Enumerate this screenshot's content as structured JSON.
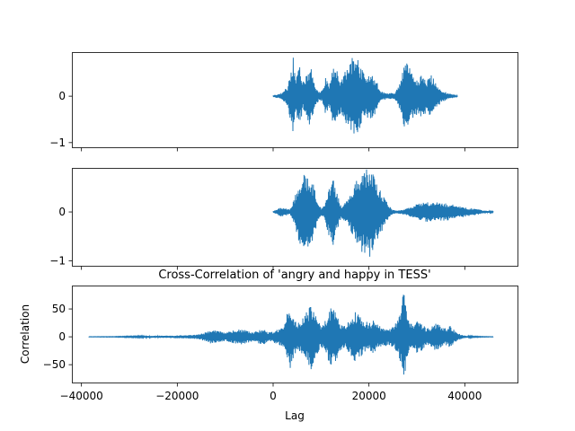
{
  "chart_data": [
    {
      "type": "line",
      "title": "",
      "xlabel": "",
      "ylabel": "",
      "xlim": [
        -42000,
        51000
      ],
      "ylim": [
        -1.1,
        0.95
      ],
      "xticks": [
        -40000,
        -20000,
        0,
        20000,
        40000
      ],
      "yticks": [
        -1,
        0
      ],
      "yticklabels": [
        "−1",
        "0"
      ],
      "show_xticklabels": false,
      "color": "#1f77b4",
      "series": [
        {
          "x_start": 0,
          "x_end": 38500,
          "envelope": [
            [
              0,
              0.02
            ],
            [
              1000,
              0.04
            ],
            [
              2000,
              0.08
            ],
            [
              2500,
              0.15
            ],
            [
              3000,
              0.2
            ],
            [
              3500,
              0.5
            ],
            [
              4200,
              0.85
            ],
            [
              4800,
              0.4
            ],
            [
              5500,
              0.65
            ],
            [
              6200,
              0.3
            ],
            [
              7000,
              0.45
            ],
            [
              7800,
              0.7
            ],
            [
              8500,
              0.3
            ],
            [
              9500,
              0.1
            ],
            [
              10300,
              0.12
            ],
            [
              11000,
              0.45
            ],
            [
              11800,
              0.25
            ],
            [
              12500,
              0.65
            ],
            [
              13300,
              0.55
            ],
            [
              14200,
              0.35
            ],
            [
              15000,
              0.55
            ],
            [
              16000,
              0.7
            ],
            [
              17000,
              0.95
            ],
            [
              17600,
              0.9
            ],
            [
              18500,
              0.6
            ],
            [
              19500,
              0.45
            ],
            [
              20500,
              0.5
            ],
            [
              21500,
              0.35
            ],
            [
              22500,
              0.1
            ],
            [
              24000,
              0.06
            ],
            [
              25500,
              0.08
            ],
            [
              26500,
              0.3
            ],
            [
              27500,
              0.75
            ],
            [
              28000,
              0.7
            ],
            [
              29000,
              0.5
            ],
            [
              30000,
              0.4
            ],
            [
              31000,
              0.45
            ],
            [
              32000,
              0.35
            ],
            [
              33000,
              0.45
            ],
            [
              34000,
              0.3
            ],
            [
              35000,
              0.15
            ],
            [
              36500,
              0.06
            ],
            [
              38000,
              0.03
            ],
            [
              38500,
              0.02
            ]
          ]
        }
      ]
    },
    {
      "type": "line",
      "title": "",
      "xlabel": "",
      "ylabel": "",
      "xlim": [
        -42000,
        51000
      ],
      "ylim": [
        -1.1,
        0.9
      ],
      "xticks": [
        -40000,
        -20000,
        0,
        20000,
        40000
      ],
      "yticks": [
        -1,
        0
      ],
      "yticklabels": [
        "−1",
        "0"
      ],
      "show_xticklabels": false,
      "color": "#1f77b4",
      "series": [
        {
          "x_start": 0,
          "x_end": 46000,
          "envelope": [
            [
              0,
              0.02
            ],
            [
              800,
              0.05
            ],
            [
              1500,
              0.1
            ],
            [
              2500,
              0.08
            ],
            [
              3500,
              0.05
            ],
            [
              4500,
              0.3
            ],
            [
              5500,
              0.65
            ],
            [
              6500,
              0.78
            ],
            [
              7500,
              0.7
            ],
            [
              8500,
              0.55
            ],
            [
              9200,
              0.25
            ],
            [
              10000,
              0.08
            ],
            [
              10800,
              0.15
            ],
            [
              11500,
              0.45
            ],
            [
              12400,
              0.72
            ],
            [
              13300,
              0.4
            ],
            [
              14200,
              0.12
            ],
            [
              15000,
              0.2
            ],
            [
              16000,
              0.35
            ],
            [
              17000,
              0.55
            ],
            [
              18000,
              0.78
            ],
            [
              19000,
              0.85
            ],
            [
              20000,
              0.95
            ],
            [
              21000,
              0.75
            ],
            [
              22000,
              0.5
            ],
            [
              23000,
              0.35
            ],
            [
              24000,
              0.15
            ],
            [
              25000,
              0.04
            ],
            [
              26000,
              0.03
            ],
            [
              27000,
              0.05
            ],
            [
              28000,
              0.08
            ],
            [
              29000,
              0.12
            ],
            [
              30000,
              0.16
            ],
            [
              31000,
              0.18
            ],
            [
              32000,
              0.2
            ],
            [
              33000,
              0.2
            ],
            [
              34000,
              0.2
            ],
            [
              35000,
              0.19
            ],
            [
              36000,
              0.18
            ],
            [
              37000,
              0.16
            ],
            [
              38000,
              0.14
            ],
            [
              39000,
              0.12
            ],
            [
              40000,
              0.1
            ],
            [
              41000,
              0.08
            ],
            [
              42000,
              0.07
            ],
            [
              43000,
              0.05
            ],
            [
              44000,
              0.03
            ],
            [
              45000,
              0.02
            ],
            [
              46000,
              0.01
            ]
          ]
        }
      ]
    },
    {
      "type": "line",
      "title": "Cross-Correlation of 'angry and happy in TESS'",
      "xlabel": "Lag",
      "ylabel": "Correlation",
      "xlim": [
        -42000,
        51000
      ],
      "ylim": [
        -82,
        92
      ],
      "xticks": [
        -40000,
        -20000,
        0,
        20000,
        40000
      ],
      "xticklabels": [
        "−40000",
        "−20000",
        "0",
        "20000",
        "40000"
      ],
      "yticks": [
        -50,
        0,
        50
      ],
      "yticklabels": [
        "−50",
        "0",
        "50"
      ],
      "show_xticklabels": true,
      "color": "#1f77b4",
      "series": [
        {
          "x_start": -38500,
          "x_end": 46000,
          "envelope": [
            [
              -38500,
              0.3
            ],
            [
              -33000,
              0.5
            ],
            [
              -30000,
              1
            ],
            [
              -27000,
              1.5
            ],
            [
              -25000,
              2
            ],
            [
              -22000,
              2
            ],
            [
              -20000,
              2.5
            ],
            [
              -18000,
              3
            ],
            [
              -16000,
              4
            ],
            [
              -14000,
              8
            ],
            [
              -13000,
              12
            ],
            [
              -11000,
              10
            ],
            [
              -10000,
              8
            ],
            [
              -8000,
              12
            ],
            [
              -6500,
              14
            ],
            [
              -5000,
              10
            ],
            [
              -4000,
              8
            ],
            [
              -3000,
              12
            ],
            [
              -2000,
              14
            ],
            [
              -1000,
              8
            ],
            [
              0,
              10
            ],
            [
              1000,
              14
            ],
            [
              2000,
              20
            ],
            [
              3000,
              45
            ],
            [
              3500,
              60
            ],
            [
              4200,
              40
            ],
            [
              5000,
              25
            ],
            [
              6000,
              30
            ],
            [
              7000,
              45
            ],
            [
              8000,
              60
            ],
            [
              9000,
              35
            ],
            [
              10000,
              20
            ],
            [
              11000,
              30
            ],
            [
              12000,
              55
            ],
            [
              13000,
              45
            ],
            [
              14000,
              25
            ],
            [
              15000,
              20
            ],
            [
              16000,
              30
            ],
            [
              17000,
              45
            ],
            [
              18000,
              40
            ],
            [
              19000,
              30
            ],
            [
              20000,
              25
            ],
            [
              21000,
              30
            ],
            [
              22000,
              20
            ],
            [
              23000,
              18
            ],
            [
              24000,
              15
            ],
            [
              25000,
              18
            ],
            [
              26000,
              30
            ],
            [
              26800,
              60
            ],
            [
              27200,
              85
            ],
            [
              27600,
              60
            ],
            [
              28500,
              25
            ],
            [
              29500,
              20
            ],
            [
              30000,
              35
            ],
            [
              31000,
              25
            ],
            [
              32000,
              15
            ],
            [
              33000,
              20
            ],
            [
              34000,
              25
            ],
            [
              35000,
              20
            ],
            [
              36000,
              15
            ],
            [
              37000,
              20
            ],
            [
              38000,
              10
            ],
            [
              39000,
              5
            ],
            [
              40000,
              2
            ],
            [
              42000,
              1
            ],
            [
              44000,
              0.5
            ],
            [
              46000,
              0.3
            ]
          ]
        }
      ]
    }
  ]
}
